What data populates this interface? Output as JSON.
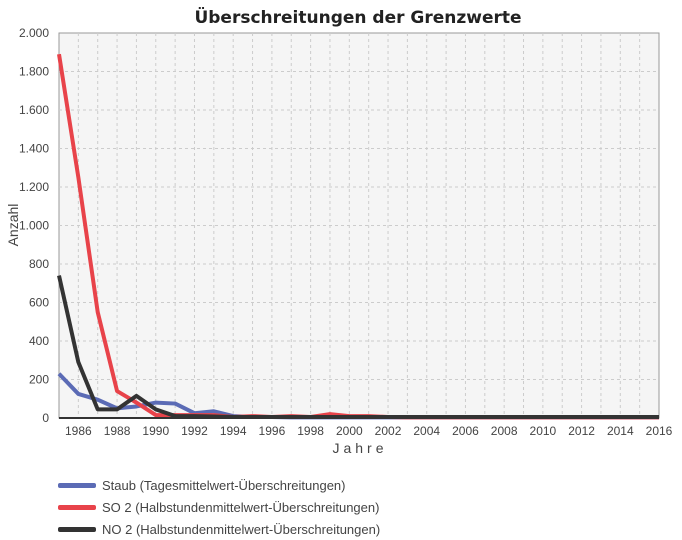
{
  "chart_data": {
    "type": "line",
    "title": "Überschreitungen der Grenzwerte",
    "xlabel": "Jahre",
    "ylabel": "Anzahl",
    "xlim": [
      1985,
      2016
    ],
    "ylim": [
      0,
      2000
    ],
    "grid": true,
    "legend_placement": "bottom",
    "yticks": [
      0,
      200,
      400,
      600,
      800,
      1000,
      1200,
      1400,
      1600,
      1800,
      2000
    ],
    "ytick_labels": [
      "0",
      "200",
      "400",
      "600",
      "800",
      "1.000",
      "1.200",
      "1.400",
      "1.600",
      "1.800",
      "2.000"
    ],
    "xticks": [
      "1986",
      "1988",
      "1990",
      "1992",
      "1994",
      "1996",
      "1998",
      "2000",
      "2002",
      "2004",
      "2006",
      "2008",
      "2010",
      "2012",
      "2014",
      "2016"
    ],
    "x": [
      1985,
      1986,
      1987,
      1988,
      1989,
      1990,
      1991,
      1992,
      1993,
      1994,
      1995,
      1996,
      1997,
      1998,
      1999,
      2000,
      2001,
      2002,
      2003,
      2004,
      2005,
      2006,
      2007,
      2008,
      2009,
      2010,
      2011,
      2012,
      2013,
      2014,
      2015,
      2016
    ],
    "series": [
      {
        "name": "Staub (Tagesmittelwert-Überschreitungen)",
        "color": "#5b6bb5",
        "values": [
          230,
          125,
          95,
          50,
          60,
          80,
          75,
          25,
          35,
          10,
          5,
          5,
          3,
          3,
          3,
          3,
          3,
          3,
          3,
          3,
          3,
          3,
          3,
          3,
          3,
          3,
          3,
          3,
          3,
          3,
          3,
          3
        ]
      },
      {
        "name": "SO 2 (Halbstundenmittelwert-Überschreitungen)",
        "color": "#e8434a",
        "values": [
          1890,
          1250,
          550,
          140,
          80,
          15,
          15,
          15,
          15,
          5,
          10,
          5,
          10,
          5,
          20,
          10,
          10,
          5,
          3,
          3,
          3,
          3,
          3,
          3,
          3,
          3,
          3,
          3,
          3,
          3,
          3,
          3
        ]
      },
      {
        "name": "NO 2 (Halbstundenmittelwert-Überschreitungen)",
        "color": "#333333",
        "values": [
          740,
          290,
          45,
          45,
          115,
          45,
          10,
          10,
          8,
          5,
          5,
          5,
          5,
          5,
          5,
          5,
          5,
          5,
          5,
          5,
          5,
          5,
          5,
          5,
          5,
          5,
          5,
          5,
          5,
          5,
          5,
          5
        ]
      }
    ]
  }
}
